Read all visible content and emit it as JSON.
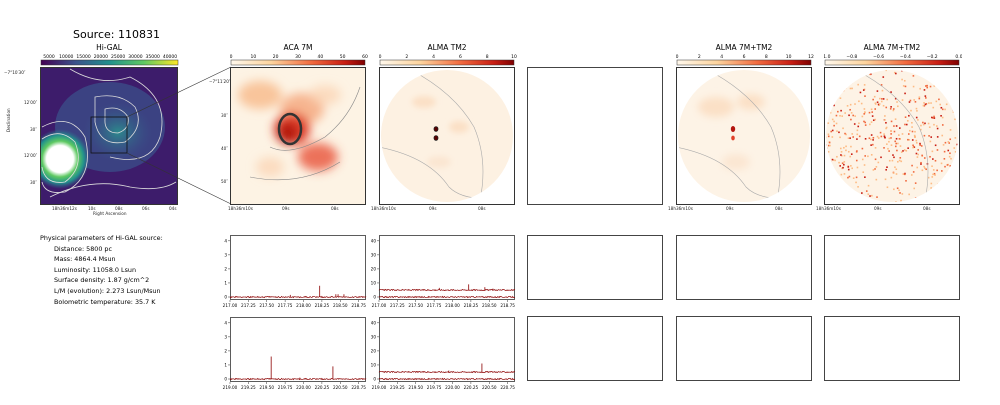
{
  "source_title": "Source: 110831",
  "panels": {
    "higal": "Hi-GAL",
    "aca": "ACA 7M",
    "alma": "ALMA TM2",
    "combo": "ALMA 7M+TM2",
    "combo2": "ALMA 7M+TM2"
  },
  "colorbars": {
    "higal": [
      "5000",
      "10000",
      "15000",
      "20000",
      "25000",
      "30000",
      "35000",
      "40000"
    ],
    "aca": [
      "0",
      "10",
      "20",
      "30",
      "40",
      "50",
      "60"
    ],
    "alma": [
      "0",
      "2",
      "4",
      "6",
      "8",
      "10"
    ],
    "combo": [
      "0",
      "2",
      "4",
      "6",
      "8",
      "10",
      "12"
    ],
    "combo2": [
      "−1.0",
      "−0.8",
      "−0.6",
      "−0.4",
      "−0.2",
      "0.0"
    ]
  },
  "axes": {
    "higal": {
      "y_ticks": [
        "−7°10′30″",
        "12′00″",
        "30″",
        "12′00″",
        "30″"
      ],
      "x_ticks": [
        "18h36m12s",
        "10s",
        "08s",
        "06s",
        "04s"
      ],
      "xlabel": "Right Ascension",
      "ylabel": "Declination"
    },
    "aca": {
      "y_ticks": [
        "−7°11′20″",
        "30″",
        "40″",
        "50″"
      ],
      "x_ticks": [
        "18h36m10s",
        "09s",
        "08s"
      ]
    },
    "alma_x_ticks": [
      "18h36m10s",
      "09s",
      "08s"
    ]
  },
  "params": {
    "heading": "Physical parameters of Hi-GAL source:",
    "lines": [
      "Distance: 5800 pc",
      "Mass: 4864.4 Msun",
      "Luminosity: 11058.0 Lsun",
      "Surface density: 1.87 g/cm^2",
      "L/M (evolution): 2.273 Lsun/Msun",
      "Bolometric temperature: 35.7 K"
    ]
  },
  "spectra": {
    "row1_aca": {
      "x_ticks": [
        "217.00",
        "217.25",
        "217.50",
        "217.75",
        "218.00",
        "218.25",
        "218.50",
        "218.75"
      ],
      "xmin": 217.0,
      "xmax": 218.85,
      "y_ticks": [
        "0",
        "1",
        "2",
        "3",
        "4"
      ],
      "ymax": 4.2,
      "baselines": [
        0.0
      ],
      "peaks": [
        {
          "x": 218.22,
          "y": 0.8
        },
        {
          "x": 218.44,
          "y": 0.2
        },
        {
          "x": 218.47,
          "y": 0.2
        },
        {
          "x": 217.82,
          "y": 0.15
        },
        {
          "x": 218.55,
          "y": 0.2
        }
      ]
    },
    "row1_alma": {
      "x_ticks": [
        "217.00",
        "217.25",
        "217.50",
        "217.75",
        "218.00",
        "218.25",
        "218.50",
        "218.75"
      ],
      "xmin": 217.0,
      "xmax": 218.85,
      "y_ticks": [
        "0",
        "10",
        "20",
        "30",
        "40"
      ],
      "ymax": 42,
      "baselines": [
        0.0,
        5.0
      ],
      "peaks": [
        {
          "x": 218.22,
          "y": 9.0
        },
        {
          "x": 218.44,
          "y": 7.0
        },
        {
          "x": 217.82,
          "y": 6.5
        },
        {
          "x": 218.55,
          "y": 6.0
        }
      ]
    },
    "row2_aca": {
      "x_ticks": [
        "219.00",
        "219.25",
        "219.50",
        "219.75",
        "220.00",
        "220.25",
        "220.50",
        "220.75"
      ],
      "xmin": 219.0,
      "xmax": 220.85,
      "y_ticks": [
        "0",
        "1",
        "2",
        "3",
        "4"
      ],
      "ymax": 4.2,
      "baselines": [
        0.0
      ],
      "peaks": [
        {
          "x": 219.56,
          "y": 1.6
        },
        {
          "x": 220.4,
          "y": 0.9
        },
        {
          "x": 219.95,
          "y": 0.1
        },
        {
          "x": 219.12,
          "y": 0.05
        }
      ]
    },
    "row2_alma": {
      "x_ticks": [
        "219.00",
        "219.25",
        "219.50",
        "219.75",
        "220.00",
        "220.25",
        "220.50",
        "220.75"
      ],
      "xmin": 219.0,
      "xmax": 220.85,
      "y_ticks": [
        "0",
        "10",
        "20",
        "30",
        "40"
      ],
      "ymax": 42,
      "baselines": [
        0.0,
        5.0
      ],
      "peaks": [
        {
          "x": 219.56,
          "y": 5.5
        },
        {
          "x": 220.4,
          "y": 11.0
        },
        {
          "x": 219.95,
          "y": 6.0
        }
      ]
    }
  },
  "colors": {
    "spectrum": "#8b0000",
    "viridis_dark": "#440154",
    "viridis_mid": "#31688e",
    "viridis_light": "#35b779",
    "ylorrd_low": "#fdf5e8",
    "ylorrd_high": "#8b0000"
  }
}
